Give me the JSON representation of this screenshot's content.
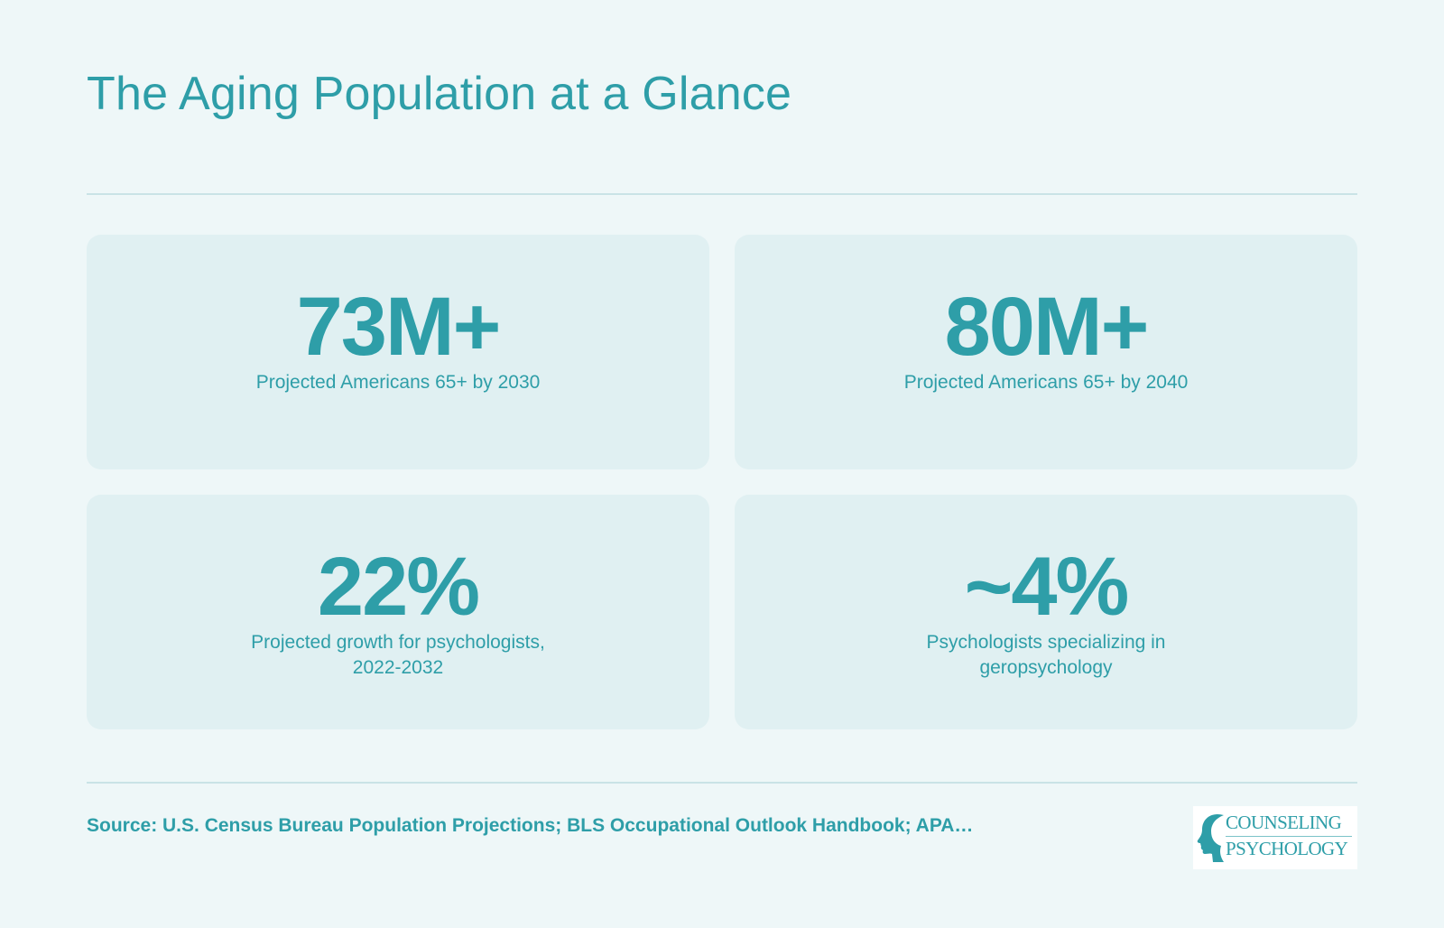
{
  "title": "The Aging Population at a Glance",
  "stats": [
    {
      "value": "73M+",
      "label": "Projected Americans 65+ by 2030"
    },
    {
      "value": "80M+",
      "label": "Projected Americans 65+ by 2040"
    },
    {
      "value": "22%",
      "label": "Projected growth for psychologists, 2022-2032"
    },
    {
      "value": "~4%",
      "label": "Psychologists specializing in geropsychology"
    }
  ],
  "source": "Source: U.S. Census Bureau Population Projections; BLS Occupational Outlook Handbook; APA…",
  "logo": {
    "line1": "COUNSELING",
    "line2": "PSYCHOLOGY",
    "icon": "head-profile-icon"
  },
  "colors": {
    "accent": "#2e9ea8",
    "background": "#eef7f8",
    "card": "#e0f0f2",
    "divider": "#c9e3e6"
  }
}
